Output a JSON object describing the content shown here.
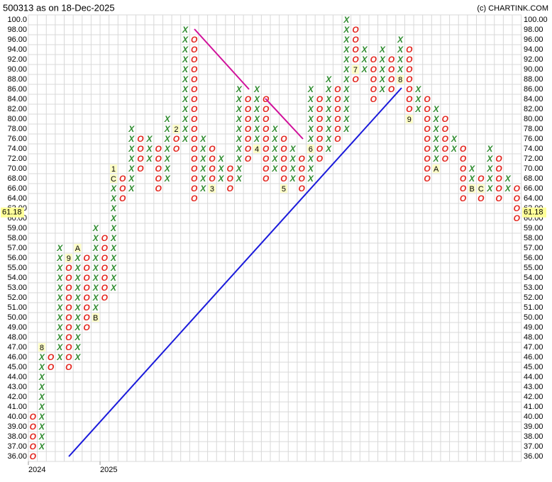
{
  "chart_data": {
    "type": "point-and-figure",
    "title": "500313 as on 18-Dec-2025",
    "credit": "(c) CHARTINK.COM",
    "x_color": "#2e8b2e",
    "o_color": "#e3261f",
    "last_price": 61.18,
    "yticks": [
      {
        "value": 100,
        "label": "100.0"
      },
      {
        "value": 98,
        "label": "98.00"
      },
      {
        "value": 96,
        "label": "96.00"
      },
      {
        "value": 94,
        "label": "94.00"
      },
      {
        "value": 92,
        "label": "92.00"
      },
      {
        "value": 90,
        "label": "90.00"
      },
      {
        "value": 88,
        "label": "88.00"
      },
      {
        "value": 86,
        "label": "86.00"
      },
      {
        "value": 84,
        "label": "84.00"
      },
      {
        "value": 82,
        "label": "82.00"
      },
      {
        "value": 80,
        "label": "80.00"
      },
      {
        "value": 78,
        "label": "78.00"
      },
      {
        "value": 76,
        "label": "76.00"
      },
      {
        "value": 74,
        "label": "74.00"
      },
      {
        "value": 72,
        "label": "72.00"
      },
      {
        "value": 70,
        "label": "70.00"
      },
      {
        "value": 68,
        "label": "68.00"
      },
      {
        "value": 66,
        "label": "66.00"
      },
      {
        "value": 64,
        "label": "64.00"
      },
      {
        "value": 62,
        "label": "62.00"
      },
      {
        "value": 60,
        "label": "60.00"
      },
      {
        "value": 59,
        "label": "59.00"
      },
      {
        "value": 58,
        "label": "58.00"
      },
      {
        "value": 57,
        "label": "57.00"
      },
      {
        "value": 56,
        "label": "56.00"
      },
      {
        "value": 55,
        "label": "55.00"
      },
      {
        "value": 54,
        "label": "54.00"
      },
      {
        "value": 53,
        "label": "53.00"
      },
      {
        "value": 52,
        "label": "52.00"
      },
      {
        "value": 51,
        "label": "51.00"
      },
      {
        "value": 50,
        "label": "50.00"
      },
      {
        "value": 49,
        "label": "49.00"
      },
      {
        "value": 48,
        "label": "48.00"
      },
      {
        "value": 47,
        "label": "47.00"
      },
      {
        "value": 46,
        "label": "46.00"
      },
      {
        "value": 45,
        "label": "45.00"
      },
      {
        "value": 44,
        "label": "44.00"
      },
      {
        "value": 43,
        "label": "43.00"
      },
      {
        "value": 42,
        "label": "42.00"
      },
      {
        "value": 41,
        "label": "41.00"
      },
      {
        "value": 40,
        "label": "40.00"
      },
      {
        "value": 39,
        "label": "39.00"
      },
      {
        "value": 38,
        "label": "38.00"
      },
      {
        "value": 37,
        "label": "37.00"
      },
      {
        "value": 36,
        "label": "36.00"
      }
    ],
    "y2ticks": [
      {
        "value": 100,
        "label": "100.00"
      },
      {
        "value": 98,
        "label": "98.00"
      },
      {
        "value": 96,
        "label": "96.00"
      },
      {
        "value": 94,
        "label": "94.00"
      },
      {
        "value": 92,
        "label": "92.00"
      },
      {
        "value": 90,
        "label": "90.00"
      },
      {
        "value": 88,
        "label": "88.00"
      },
      {
        "value": 86,
        "label": "86.00"
      },
      {
        "value": 84,
        "label": "84.00"
      },
      {
        "value": 82,
        "label": "82.00"
      },
      {
        "value": 80,
        "label": "80.00"
      },
      {
        "value": 78,
        "label": "78.00"
      },
      {
        "value": 76,
        "label": "76.00"
      },
      {
        "value": 74,
        "label": "74.00"
      },
      {
        "value": 72,
        "label": "72.00"
      },
      {
        "value": 70,
        "label": "70.00"
      },
      {
        "value": 68,
        "label": "68.00"
      },
      {
        "value": 66,
        "label": "66.00"
      },
      {
        "value": 64,
        "label": "64.00"
      },
      {
        "value": 62,
        "label": "62.00"
      },
      {
        "value": 60,
        "label": "60.00"
      },
      {
        "value": 59,
        "label": "59.00"
      },
      {
        "value": 58,
        "label": "58.00"
      },
      {
        "value": 57,
        "label": "57.00"
      },
      {
        "value": 56,
        "label": "56.00"
      },
      {
        "value": 55,
        "label": "55.00"
      },
      {
        "value": 54,
        "label": "54.00"
      },
      {
        "value": 53,
        "label": "53.00"
      },
      {
        "value": 52,
        "label": "52.00"
      },
      {
        "value": 51,
        "label": "51.00"
      },
      {
        "value": 50,
        "label": "50.00"
      },
      {
        "value": 49,
        "label": "49.00"
      },
      {
        "value": 48,
        "label": "48.00"
      },
      {
        "value": 47,
        "label": "47.00"
      },
      {
        "value": 46,
        "label": "46.00"
      },
      {
        "value": 45,
        "label": "45.00"
      },
      {
        "value": 44,
        "label": "44.00"
      },
      {
        "value": 43,
        "label": "43.00"
      },
      {
        "value": 42,
        "label": "42.00"
      },
      {
        "value": 41,
        "label": "41.00"
      },
      {
        "value": 40,
        "label": "40.00"
      },
      {
        "value": 39,
        "label": "39.00"
      },
      {
        "value": 38,
        "label": "38.00"
      },
      {
        "value": 37,
        "label": "37.00"
      },
      {
        "value": 36,
        "label": "36.00"
      }
    ],
    "x_labels": [
      {
        "column": 0,
        "label": "2024"
      },
      {
        "column": 8,
        "label": "2025"
      }
    ],
    "columns": [
      {
        "type": "O",
        "high": 40,
        "low": 36
      },
      {
        "type": "X",
        "high": 47,
        "low": 37,
        "markers": [
          {
            "value": 47,
            "label": "8"
          }
        ]
      },
      {
        "type": "O",
        "high": 46,
        "low": 45
      },
      {
        "type": "X",
        "high": 57,
        "low": 46
      },
      {
        "type": "O",
        "high": 56,
        "low": 45,
        "markers": [
          {
            "value": 56,
            "label": "9"
          }
        ]
      },
      {
        "type": "X",
        "high": 57,
        "low": 46,
        "markers": [
          {
            "value": 57,
            "label": "A"
          }
        ]
      },
      {
        "type": "O",
        "high": 56,
        "low": 49
      },
      {
        "type": "X",
        "high": 59,
        "low": 50,
        "markers": [
          {
            "value": 50,
            "label": "B"
          }
        ]
      },
      {
        "type": "O",
        "high": 58,
        "low": 52
      },
      {
        "type": "X",
        "high": 70,
        "low": 53,
        "markers": [
          {
            "value": 68,
            "label": "C"
          },
          {
            "value": 70,
            "label": "1"
          }
        ]
      },
      {
        "type": "O",
        "high": 68,
        "low": 64
      },
      {
        "type": "X",
        "high": 78,
        "low": 66
      },
      {
        "type": "O",
        "high": 76,
        "low": 70
      },
      {
        "type": "X",
        "high": 76,
        "low": 72
      },
      {
        "type": "O",
        "high": 74,
        "low": 66
      },
      {
        "type": "X",
        "high": 80,
        "low": 68
      },
      {
        "type": "O",
        "high": 78,
        "low": 74,
        "markers": [
          {
            "value": 78,
            "label": "2"
          }
        ]
      },
      {
        "type": "X",
        "high": 98,
        "low": 76
      },
      {
        "type": "O",
        "high": 96,
        "low": 64
      },
      {
        "type": "X",
        "high": 76,
        "low": 66
      },
      {
        "type": "O",
        "high": 74,
        "low": 66,
        "markers": [
          {
            "value": 66,
            "label": "3"
          }
        ]
      },
      {
        "type": "X",
        "high": 72,
        "low": 68
      },
      {
        "type": "O",
        "high": 70,
        "low": 66
      },
      {
        "type": "X",
        "high": 86,
        "low": 68
      },
      {
        "type": "O",
        "high": 84,
        "low": 72
      },
      {
        "type": "X",
        "high": 86,
        "low": 74,
        "markers": [
          {
            "value": 74,
            "label": "4"
          }
        ]
      },
      {
        "type": "O",
        "high": 84,
        "low": 68
      },
      {
        "type": "X",
        "high": 78,
        "low": 70
      },
      {
        "type": "O",
        "high": 76,
        "low": 66,
        "markers": [
          {
            "value": 66,
            "label": "5"
          }
        ]
      },
      {
        "type": "X",
        "high": 74,
        "low": 68
      },
      {
        "type": "O",
        "high": 72,
        "low": 66
      },
      {
        "type": "X",
        "high": 86,
        "low": 68,
        "markers": [
          {
            "value": 74,
            "label": "6"
          }
        ]
      },
      {
        "type": "O",
        "high": 84,
        "low": 72
      },
      {
        "type": "X",
        "high": 88,
        "low": 74
      },
      {
        "type": "O",
        "high": 86,
        "low": 76
      },
      {
        "type": "X",
        "high": 100,
        "low": 78
      },
      {
        "type": "O",
        "high": 98,
        "low": 88,
        "markers": [
          {
            "value": 90,
            "label": "7"
          }
        ]
      },
      {
        "type": "X",
        "high": 94,
        "low": 90
      },
      {
        "type": "O",
        "high": 92,
        "low": 84
      },
      {
        "type": "X",
        "high": 94,
        "low": 86
      },
      {
        "type": "O",
        "high": 92,
        "low": 86
      },
      {
        "type": "X",
        "high": 96,
        "low": 88,
        "markers": [
          {
            "value": 88,
            "label": "8"
          }
        ]
      },
      {
        "type": "O",
        "high": 94,
        "low": 80,
        "markers": [
          {
            "value": 80,
            "label": "9"
          }
        ]
      },
      {
        "type": "X",
        "high": 86,
        "low": 82
      },
      {
        "type": "O",
        "high": 84,
        "low": 68
      },
      {
        "type": "X",
        "high": 82,
        "low": 70,
        "markers": [
          {
            "value": 70,
            "label": "A"
          }
        ]
      },
      {
        "type": "O",
        "high": 80,
        "low": 72
      },
      {
        "type": "X",
        "high": 76,
        "low": 74
      },
      {
        "type": "O",
        "high": 74,
        "low": 64
      },
      {
        "type": "X",
        "high": 70,
        "low": 66,
        "markers": [
          {
            "value": 66,
            "label": "B"
          }
        ]
      },
      {
        "type": "O",
        "high": 68,
        "low": 64,
        "markers": [
          {
            "value": 66,
            "label": "C"
          }
        ]
      },
      {
        "type": "X",
        "high": 74,
        "low": 66
      },
      {
        "type": "O",
        "high": 72,
        "low": 64
      },
      {
        "type": "X",
        "high": 68,
        "low": 66
      },
      {
        "type": "O",
        "high": 66,
        "low": 60
      }
    ]
  }
}
